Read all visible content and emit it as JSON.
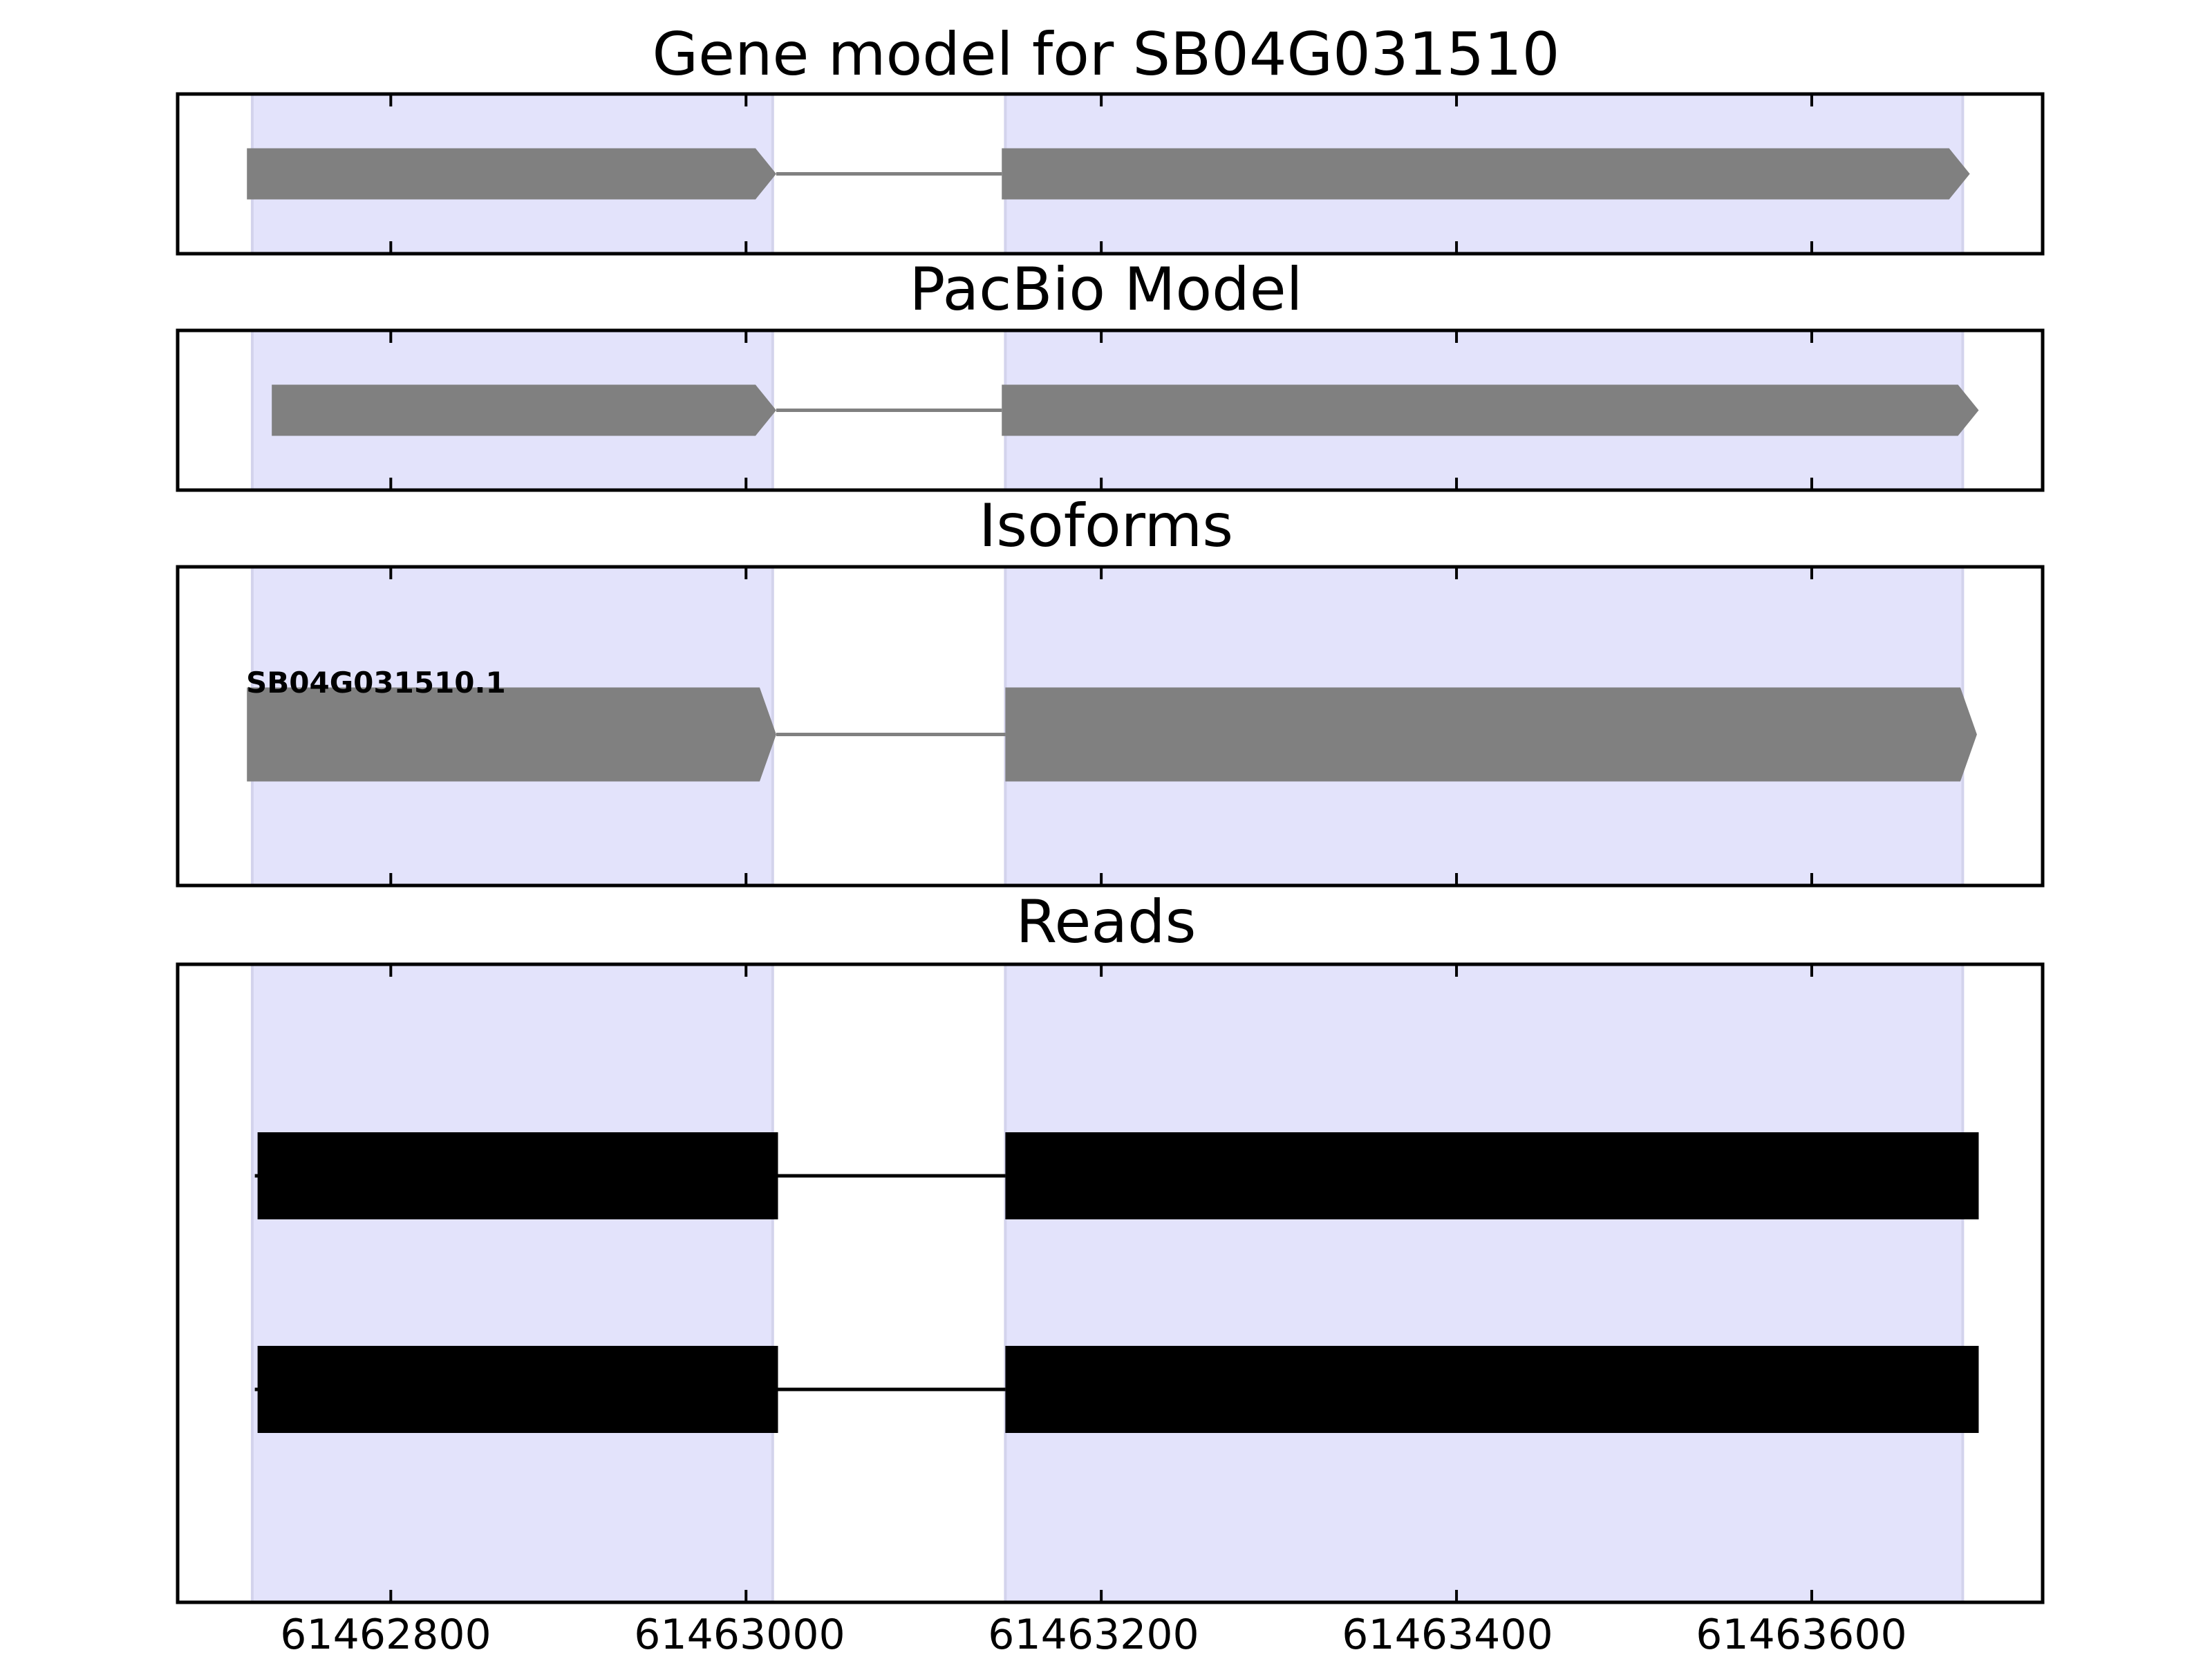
{
  "chart_data": {
    "type": "gene-model-tracks",
    "x_range": [
      61462680,
      61463730
    ],
    "x_ticks": [
      61462800,
      61463000,
      61463200,
      61463400,
      61463600
    ],
    "x_tick_labels": [
      "61462800",
      "61463000",
      "61463200",
      "61463400",
      "61463600"
    ],
    "exon_highlight_regions": [
      [
        61462722,
        61463015
      ],
      [
        61463146,
        61463685
      ]
    ],
    "highlight_color": "#e3e3fb",
    "panels": [
      {
        "title": "Gene model for SB04G031510",
        "color": "#808080",
        "strand": "+",
        "exons": [
          [
            61462719,
            61463017
          ],
          [
            61463144,
            61463689
          ]
        ],
        "label": ""
      },
      {
        "title": "PacBio Model",
        "color": "#808080",
        "strand": "+",
        "exons": [
          [
            61462733,
            61463017
          ],
          [
            61463144,
            61463694
          ]
        ],
        "label": ""
      },
      {
        "title": "Isoforms",
        "color": "#808080",
        "strand": "+",
        "exons": [
          [
            61462719,
            61463017
          ],
          [
            61463146,
            61463693
          ]
        ],
        "label": "SB04G031510.1"
      },
      {
        "title": "Reads",
        "color": "#000000",
        "reads": [
          {
            "exons": [
              [
                61462725,
                61463018
              ],
              [
                61463146,
                61463694
              ]
            ]
          },
          {
            "exons": [
              [
                61462725,
                61463018
              ],
              [
                61463146,
                61463694
              ]
            ]
          }
        ]
      }
    ]
  }
}
